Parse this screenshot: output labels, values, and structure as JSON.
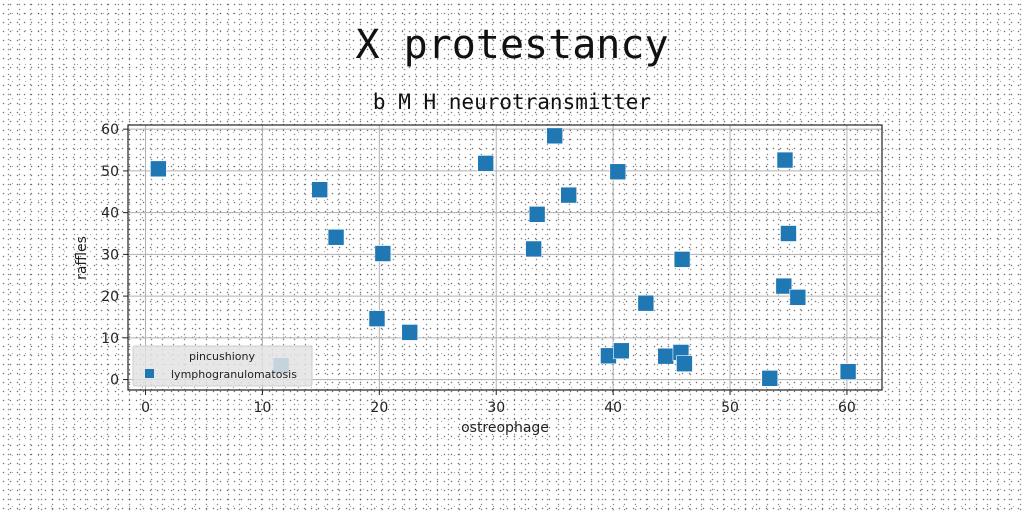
{
  "chart_data": {
    "type": "scatter",
    "title": "X protestancy",
    "subtitle": "b M H neurotransmitter",
    "xlabel": "ostreophage",
    "ylabel": "raffles",
    "xlim": [
      -1.5,
      63
    ],
    "ylim": [
      -2.5,
      61
    ],
    "xticks": [
      0,
      10,
      20,
      30,
      40,
      50,
      60
    ],
    "yticks": [
      0,
      10,
      20,
      30,
      40,
      50,
      60
    ],
    "grid": true,
    "legend": {
      "title": "pincushiony",
      "placement": "lower-left"
    },
    "series": [
      {
        "name": "lymphogranulomatosis",
        "color": "#1f77b4",
        "marker": "square",
        "x": [
          1.1,
          11.6,
          14.9,
          16.3,
          19.8,
          20.3,
          22.6,
          29.1,
          33.2,
          33.5,
          35.0,
          36.2,
          39.6,
          40.4,
          40.7,
          42.8,
          44.5,
          45.8,
          45.9,
          46.1,
          53.4,
          54.6,
          54.7,
          55.0,
          55.8,
          60.1
        ],
        "y": [
          50.5,
          3.3,
          45.5,
          34.1,
          14.6,
          30.2,
          11.3,
          51.8,
          31.3,
          39.6,
          58.4,
          44.2,
          5.7,
          49.8,
          6.9,
          18.3,
          5.6,
          6.5,
          28.8,
          3.8,
          0.3,
          22.4,
          52.6,
          35.0,
          19.7,
          1.9
        ]
      }
    ]
  }
}
